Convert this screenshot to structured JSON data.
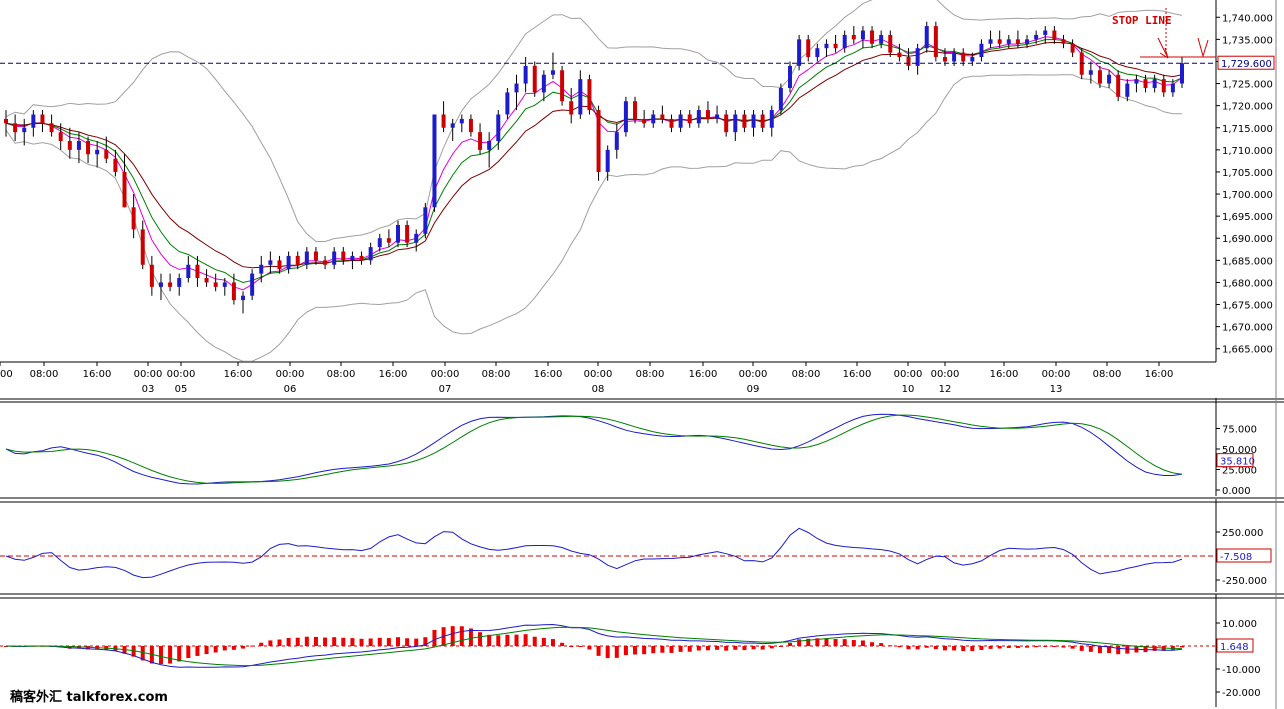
{
  "colors": {
    "bull_candle": "#1c1ccc",
    "bear_candle": "#cc0000",
    "wick": "#000000",
    "bollinger": "#a0a0a0",
    "ma_fast": "#e000e0",
    "ma_mid": "#008000",
    "ma_slow": "#800000",
    "price_dashed": "#000080",
    "stop_line": "#d00000",
    "osc_blue": "#1c1ccc",
    "osc_green": "#008000",
    "macd_hist": "#ee0000",
    "zero_line": "#d00000"
  },
  "main_panel": {
    "stop_line_label": "STOP LINE",
    "current_price_label": "1,729.600",
    "y_ticks": [
      "1,740.000",
      "1,735.000",
      "1,730.000",
      "1,725.000",
      "1,720.000",
      "1,715.000",
      "1,710.000",
      "1,705.000",
      "1,700.000",
      "1,695.000",
      "1,690.000",
      "1,685.000",
      "1,680.000",
      "1,675.000",
      "1,670.000",
      "1,665.000"
    ],
    "x_time_ticks": [
      "00",
      "08:00",
      "16:00",
      "00:00",
      "00:00",
      "16:00",
      "00:00",
      "08:00",
      "16:00",
      "00:00",
      "08:00",
      "16:00",
      "00:00",
      "08:00",
      "16:00",
      "00:00",
      "08:00",
      "16:00",
      "00:00",
      "00:00",
      "16:00",
      "00:00",
      "08:00",
      "16:00"
    ],
    "x_date_ticks": [
      "03",
      "05",
      "06",
      "07",
      "08",
      "09",
      "10",
      "12",
      "13"
    ]
  },
  "stochastic_panel": {
    "y_ticks": [
      "75.000",
      "50.000",
      "25.000",
      "0.000"
    ],
    "value_label": "35.810"
  },
  "cci_panel": {
    "y_ticks": [
      "250.000",
      "-250.000"
    ],
    "value_label": "-7.508"
  },
  "macd_panel": {
    "y_ticks": [
      "10.000",
      "0.000",
      "-10.000",
      "-20.000"
    ],
    "value_label": "1.648"
  },
  "watermark": "稿客外汇 talkforex.com",
  "chart_data": [
    {
      "type": "candlestick",
      "title": "",
      "xlabel": "",
      "ylabel": "",
      "ylim": [
        1662,
        1743
      ],
      "grid": false,
      "candles": [
        [
          1717,
          1719,
          1713,
          1716
        ],
        [
          1716,
          1718,
          1712,
          1714
        ],
        [
          1714,
          1717,
          1711,
          1715
        ],
        [
          1715,
          1719,
          1713,
          1718
        ],
        [
          1718,
          1719,
          1714,
          1716
        ],
        [
          1716,
          1718,
          1713,
          1714
        ],
        [
          1714,
          1716,
          1710,
          1712
        ],
        [
          1712,
          1715,
          1708,
          1710
        ],
        [
          1710,
          1714,
          1707,
          1712
        ],
        [
          1712,
          1713,
          1707,
          1709
        ],
        [
          1709,
          1712,
          1706,
          1710
        ],
        [
          1710,
          1713,
          1707,
          1708
        ],
        [
          1708,
          1710,
          1704,
          1705
        ],
        [
          1705,
          1709,
          1697,
          1697
        ],
        [
          1697,
          1700,
          1690,
          1692
        ],
        [
          1692,
          1694,
          1683,
          1684
        ],
        [
          1684,
          1686,
          1677,
          1679
        ],
        [
          1679,
          1682,
          1676,
          1680
        ],
        [
          1680,
          1682,
          1678,
          1679
        ],
        [
          1679,
          1682,
          1677,
          1681
        ],
        [
          1681,
          1686,
          1680,
          1684
        ],
        [
          1684,
          1686,
          1679,
          1681
        ],
        [
          1681,
          1683,
          1679,
          1680
        ],
        [
          1680,
          1682,
          1678,
          1679
        ],
        [
          1679,
          1681,
          1677,
          1680
        ],
        [
          1680,
          1682,
          1675,
          1676
        ],
        [
          1676,
          1678,
          1673,
          1677
        ],
        [
          1677,
          1683,
          1676,
          1682
        ],
        [
          1682,
          1686,
          1680,
          1684
        ],
        [
          1684,
          1687,
          1682,
          1685
        ],
        [
          1685,
          1686,
          1682,
          1683
        ],
        [
          1683,
          1687,
          1682,
          1686
        ],
        [
          1686,
          1687,
          1683,
          1684
        ],
        [
          1684,
          1688,
          1683,
          1687
        ],
        [
          1687,
          1688,
          1684,
          1685
        ],
        [
          1685,
          1686,
          1683,
          1684
        ],
        [
          1684,
          1688,
          1683,
          1687
        ],
        [
          1687,
          1688,
          1684,
          1685
        ],
        [
          1685,
          1687,
          1683,
          1686
        ],
        [
          1686,
          1687,
          1684,
          1685
        ],
        [
          1685,
          1689,
          1684,
          1688
        ],
        [
          1688,
          1691,
          1687,
          1690
        ],
        [
          1690,
          1692,
          1688,
          1689
        ],
        [
          1689,
          1694,
          1688,
          1693
        ],
        [
          1693,
          1694,
          1688,
          1689
        ],
        [
          1689,
          1692,
          1687,
          1691
        ],
        [
          1691,
          1698,
          1690,
          1697
        ],
        [
          1697,
          1718,
          1696,
          1718
        ],
        [
          1718,
          1721,
          1714,
          1715
        ],
        [
          1715,
          1717,
          1712,
          1716
        ],
        [
          1716,
          1718,
          1714,
          1717
        ],
        [
          1717,
          1718,
          1713,
          1714
        ],
        [
          1714,
          1716,
          1709,
          1710
        ],
        [
          1710,
          1714,
          1706,
          1712
        ],
        [
          1712,
          1719,
          1710,
          1718
        ],
        [
          1718,
          1724,
          1717,
          1723
        ],
        [
          1723,
          1727,
          1719,
          1725
        ],
        [
          1725,
          1731,
          1723,
          1729
        ],
        [
          1729,
          1730,
          1722,
          1723
        ],
        [
          1723,
          1728,
          1721,
          1727
        ],
        [
          1727,
          1732,
          1726,
          1728
        ],
        [
          1728,
          1729,
          1720,
          1721
        ],
        [
          1721,
          1724,
          1716,
          1718
        ],
        [
          1718,
          1728,
          1717,
          1726
        ],
        [
          1726,
          1727,
          1718,
          1719
        ],
        [
          1719,
          1720,
          1703,
          1705
        ],
        [
          1705,
          1711,
          1703,
          1710
        ],
        [
          1710,
          1716,
          1708,
          1714
        ],
        [
          1714,
          1722,
          1713,
          1721
        ],
        [
          1721,
          1722,
          1716,
          1717
        ],
        [
          1717,
          1719,
          1715,
          1716
        ],
        [
          1716,
          1719,
          1715,
          1718
        ],
        [
          1718,
          1720,
          1716,
          1717
        ],
        [
          1717,
          1718,
          1714,
          1715
        ],
        [
          1715,
          1719,
          1714,
          1718
        ],
        [
          1718,
          1719,
          1715,
          1716
        ],
        [
          1716,
          1720,
          1715,
          1719
        ],
        [
          1719,
          1721,
          1716,
          1717
        ],
        [
          1717,
          1720,
          1716,
          1718
        ],
        [
          1718,
          1719,
          1713,
          1714
        ],
        [
          1714,
          1719,
          1712,
          1718
        ],
        [
          1718,
          1719,
          1714,
          1715
        ],
        [
          1715,
          1719,
          1713,
          1718
        ],
        [
          1718,
          1719,
          1714,
          1715
        ],
        [
          1715,
          1720,
          1713,
          1719
        ],
        [
          1719,
          1725,
          1718,
          1724
        ],
        [
          1724,
          1730,
          1723,
          1729
        ],
        [
          1729,
          1736,
          1728,
          1735
        ],
        [
          1735,
          1736,
          1730,
          1731
        ],
        [
          1731,
          1734,
          1730,
          1733
        ],
        [
          1733,
          1735,
          1731,
          1734
        ],
        [
          1734,
          1736,
          1732,
          1733
        ],
        [
          1733,
          1737,
          1732,
          1736
        ],
        [
          1736,
          1738,
          1734,
          1735
        ],
        [
          1735,
          1738,
          1733,
          1737
        ],
        [
          1737,
          1738,
          1733,
          1734
        ],
        [
          1734,
          1737,
          1733,
          1736
        ],
        [
          1736,
          1737,
          1731,
          1732
        ],
        [
          1732,
          1734,
          1730,
          1731
        ],
        [
          1731,
          1733,
          1728,
          1729
        ],
        [
          1729,
          1734,
          1727,
          1733
        ],
        [
          1733,
          1739,
          1732,
          1738
        ],
        [
          1738,
          1739,
          1730,
          1731
        ],
        [
          1731,
          1733,
          1729,
          1730
        ],
        [
          1730,
          1733,
          1729,
          1732
        ],
        [
          1732,
          1733,
          1729,
          1730
        ],
        [
          1730,
          1732,
          1729,
          1731
        ],
        [
          1731,
          1735,
          1730,
          1734
        ],
        [
          1734,
          1737,
          1733,
          1735
        ],
        [
          1735,
          1737,
          1733,
          1734
        ],
        [
          1734,
          1736,
          1733,
          1735
        ],
        [
          1735,
          1737,
          1733,
          1734
        ],
        [
          1734,
          1736,
          1733,
          1735
        ],
        [
          1735,
          1737,
          1734,
          1736
        ],
        [
          1736,
          1738,
          1734,
          1737
        ],
        [
          1737,
          1738,
          1734,
          1735
        ],
        [
          1735,
          1736,
          1733,
          1734
        ],
        [
          1734,
          1735,
          1731,
          1732
        ],
        [
          1732,
          1733,
          1726,
          1727
        ],
        [
          1727,
          1730,
          1725,
          1728
        ],
        [
          1728,
          1729,
          1724,
          1725
        ],
        [
          1725,
          1728,
          1724,
          1727
        ],
        [
          1727,
          1728,
          1721,
          1722
        ],
        [
          1722,
          1726,
          1721,
          1725
        ],
        [
          1725,
          1727,
          1723,
          1726
        ],
        [
          1726,
          1727,
          1723,
          1724
        ],
        [
          1724,
          1727,
          1723,
          1726
        ],
        [
          1726,
          1727,
          1722,
          1723
        ],
        [
          1723,
          1726,
          1722,
          1725
        ],
        [
          1725,
          1731,
          1724,
          1729.6
        ]
      ]
    }
  ]
}
